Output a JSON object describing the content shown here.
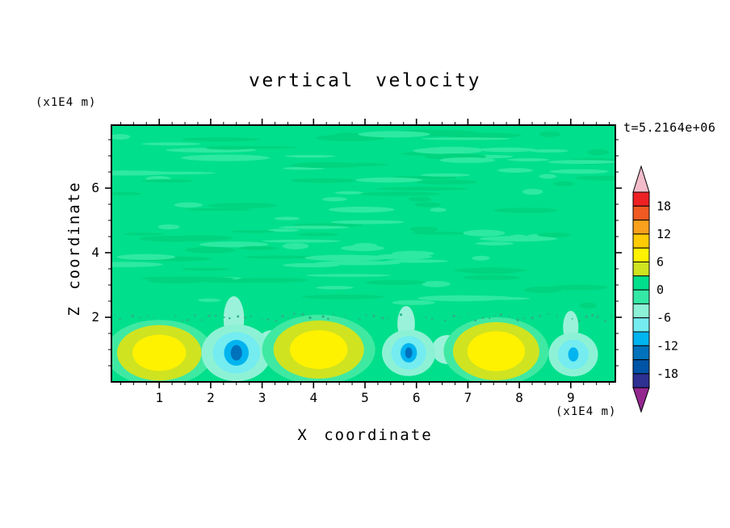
{
  "figure": {
    "title": "vertical velocity",
    "time_annotation": "t=5.2164e+06",
    "x_axis": {
      "label": "X coordinate",
      "unit": "(x1E4 m)"
    },
    "z_axis": {
      "label": "Z coordinate",
      "unit": "(x1E4 m)"
    }
  },
  "chart_data": {
    "type": "heatmap",
    "subtype": "filled-contour-cross-section",
    "title": "vertical velocity",
    "xlabel": "X coordinate",
    "x_unit": "(x1E4 m)",
    "ylabel": "Z coordinate",
    "y_unit": "(x1E4 m)",
    "time_annotation": "t=5.2164e+06",
    "xlim": [
      0.07,
      9.87
    ],
    "ylim": [
      0,
      7.95
    ],
    "xticks": [
      1,
      2,
      3,
      4,
      5,
      6,
      7,
      8,
      9
    ],
    "x_minor_step": 0.25,
    "zticks": [
      2,
      4,
      6
    ],
    "z_minor_step": 0.5,
    "grid": false,
    "contour_interval": 3,
    "background_band": [
      0,
      3
    ],
    "background_color": "#00df8b",
    "colorbar": {
      "position": "right",
      "max": 21,
      "min": -21,
      "step": 3,
      "labels": [
        18,
        12,
        6,
        0,
        -6,
        -12,
        -18
      ],
      "colors_top_to_bottom": [
        "#ed2024",
        "#f15a22",
        "#f9a11d",
        "#ffcb05",
        "#fff200",
        "#cfe321",
        "#00df8b",
        "#35e8a5",
        "#8df2d5",
        "#74ecf0",
        "#00b4ef",
        "#0072bc",
        "#0054a6",
        "#2e3192"
      ],
      "over_color": "#f2bccb",
      "under_color": "#93278f"
    },
    "texture": {
      "seed": 20240817,
      "count": 120,
      "colors": [
        "#2ee9a1",
        "#00d47e"
      ],
      "speckle_color": "#2bb389",
      "speckle_z": 2.0
    },
    "features": [
      {
        "name": "downdraft-plume-1",
        "cx": 2.45,
        "cz": 1.95,
        "peak": -4,
        "rings": [
          {
            "rx": 0.2,
            "rz": 0.7,
            "color": "#9bf2da"
          }
        ]
      },
      {
        "name": "downdraft-plume-2",
        "cx": 5.8,
        "cz": 1.8,
        "peak": -4,
        "rings": [
          {
            "rx": 0.17,
            "rz": 0.55,
            "color": "#9bf2da"
          }
        ]
      },
      {
        "name": "downdraft-plume-3",
        "cx": 9.0,
        "cz": 1.7,
        "peak": -4,
        "rings": [
          {
            "rx": 0.15,
            "rz": 0.5,
            "color": "#9bf2da"
          }
        ]
      },
      {
        "name": "aqua-patch-left",
        "cx": 0.22,
        "cz": 0.8,
        "peak": -5,
        "rings": [
          {
            "rx": 0.22,
            "rz": 0.5,
            "color": "#8df2d5"
          }
        ]
      },
      {
        "name": "aqua-patch-mid",
        "cx": 3.2,
        "cz": 1.2,
        "peak": -4,
        "rings": [
          {
            "rx": 0.3,
            "rz": 0.4,
            "color": "#9bf2da"
          }
        ]
      },
      {
        "name": "aqua-patch-right",
        "cx": 6.6,
        "cz": 1.0,
        "peak": -4,
        "rings": [
          {
            "rx": 0.3,
            "rz": 0.45,
            "color": "#9bf2da"
          }
        ]
      },
      {
        "name": "updraft-1",
        "cx": 1.0,
        "cz": 0.9,
        "peak": 8,
        "rings": [
          {
            "rx": 1.05,
            "rz": 1.02,
            "color": "#3fe9a2"
          },
          {
            "rx": 0.82,
            "rz": 0.86,
            "color": "#cfe321"
          },
          {
            "rx": 0.52,
            "rz": 0.56,
            "color": "#fff200"
          }
        ]
      },
      {
        "name": "downdraft-1",
        "cx": 2.5,
        "cz": 0.9,
        "peak": -14,
        "rings": [
          {
            "rx": 0.68,
            "rz": 0.88,
            "color": "#8df2d5"
          },
          {
            "rx": 0.46,
            "rz": 0.64,
            "color": "#74ecf0"
          },
          {
            "rx": 0.24,
            "rz": 0.4,
            "color": "#00b4ef"
          },
          {
            "rx": 0.11,
            "rz": 0.24,
            "color": "#0072bc"
          }
        ]
      },
      {
        "name": "updraft-2",
        "cx": 4.1,
        "cz": 1.0,
        "peak": 8,
        "rings": [
          {
            "rx": 1.1,
            "rz": 1.08,
            "color": "#3fe9a2"
          },
          {
            "rx": 0.88,
            "rz": 0.9,
            "color": "#cfe321"
          },
          {
            "rx": 0.56,
            "rz": 0.6,
            "color": "#fff200"
          }
        ]
      },
      {
        "name": "downdraft-2",
        "cx": 5.85,
        "cz": 0.9,
        "peak": -13,
        "rings": [
          {
            "rx": 0.52,
            "rz": 0.72,
            "color": "#8df2d5"
          },
          {
            "rx": 0.34,
            "rz": 0.52,
            "color": "#74ecf0"
          },
          {
            "rx": 0.16,
            "rz": 0.3,
            "color": "#00b4ef"
          },
          {
            "rx": 0.07,
            "rz": 0.17,
            "color": "#0072bc"
          }
        ]
      },
      {
        "name": "updraft-3",
        "cx": 7.55,
        "cz": 0.95,
        "peak": 9,
        "rings": [
          {
            "rx": 1.02,
            "rz": 1.05,
            "color": "#3fe9a2"
          },
          {
            "rx": 0.84,
            "rz": 0.9,
            "color": "#cfe321"
          },
          {
            "rx": 0.56,
            "rz": 0.62,
            "color": "#fff200"
          }
        ]
      },
      {
        "name": "downdraft-3",
        "cx": 9.05,
        "cz": 0.85,
        "peak": -10,
        "rings": [
          {
            "rx": 0.48,
            "rz": 0.68,
            "color": "#8df2d5"
          },
          {
            "rx": 0.3,
            "rz": 0.46,
            "color": "#74ecf0"
          },
          {
            "rx": 0.1,
            "rz": 0.22,
            "color": "#00b4ef"
          }
        ]
      }
    ]
  }
}
